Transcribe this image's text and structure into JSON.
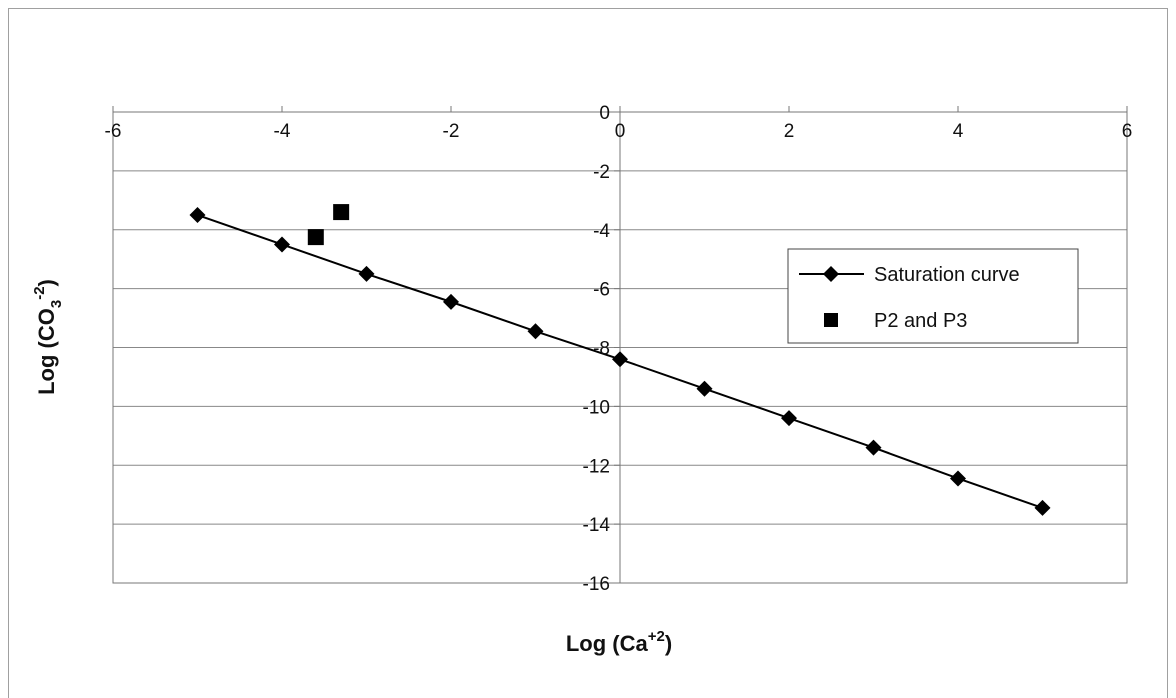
{
  "chart_data": {
    "type": "scatter",
    "xlabel": {
      "base": "Log (Ca",
      "sup": "+2",
      "tail": ")"
    },
    "ylabel": {
      "base": "Log (CO",
      "sub": "3",
      "sup": "-2",
      "tail": ")"
    },
    "xlim": [
      -6,
      6
    ],
    "ylim": [
      -16,
      0
    ],
    "x_ticks": [
      -6,
      -4,
      -2,
      0,
      2,
      4,
      6
    ],
    "y_ticks": [
      0,
      -2,
      -4,
      -6,
      -8,
      -10,
      -12,
      -14,
      -16
    ],
    "grid": "horizontal",
    "legend_position": "right",
    "series": [
      {
        "name": "Saturation curve",
        "marker": "diamond",
        "line": true,
        "color": "#000000",
        "x": [
          -5,
          -4,
          -3,
          -2,
          -1,
          0,
          1,
          2,
          3,
          4,
          5
        ],
        "y": [
          -3.5,
          -4.5,
          -5.5,
          -6.45,
          -7.45,
          -8.4,
          -9.4,
          -10.4,
          -11.4,
          -12.45,
          -13.45
        ]
      },
      {
        "name": "P2 and P3",
        "marker": "square",
        "line": false,
        "color": "#000000",
        "x": [
          -3.6,
          -3.3
        ],
        "y": [
          -4.25,
          -3.4
        ]
      }
    ]
  }
}
